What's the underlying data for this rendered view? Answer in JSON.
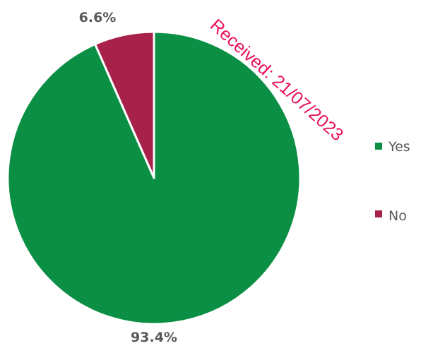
{
  "chart_data": {
    "type": "pie",
    "categories": [
      "Yes",
      "No"
    ],
    "values": [
      93.4,
      6.6
    ],
    "data_labels": [
      "93.4%",
      "6.6%"
    ],
    "colors": [
      "#0b8f44",
      "#a8214a"
    ],
    "legend": {
      "placement": "right",
      "entries": [
        "Yes",
        "No"
      ]
    },
    "start_angle_deg": 0,
    "direction": "clockwise"
  },
  "stamp": {
    "text": "Received: 21/07/2023",
    "color": "#e8105a"
  }
}
